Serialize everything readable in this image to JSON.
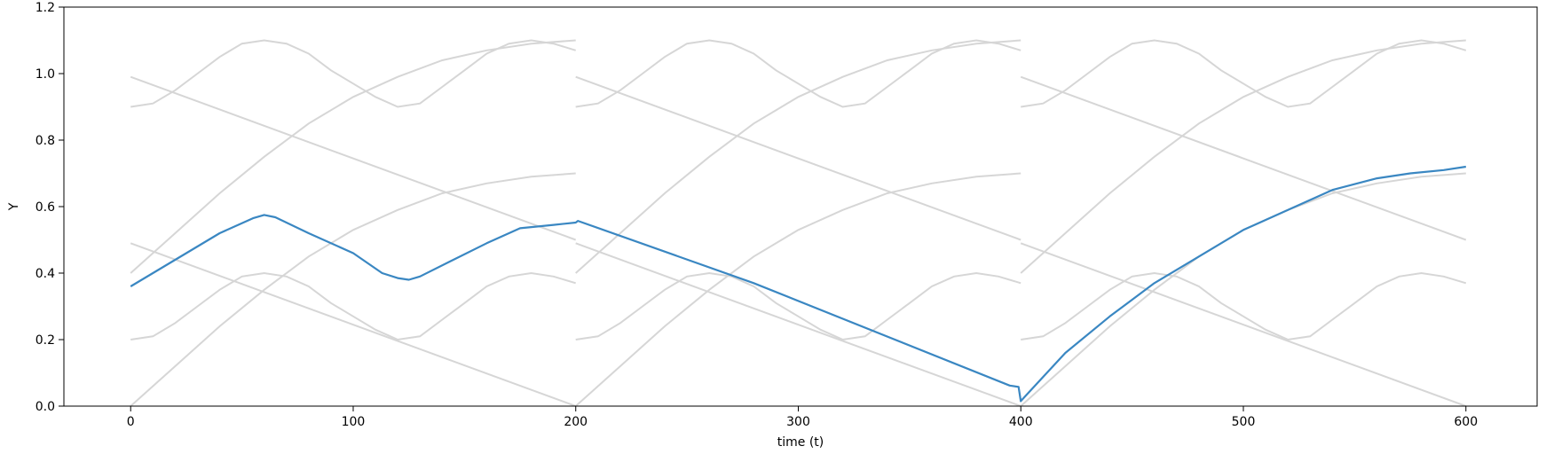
{
  "chart_data": {
    "type": "line",
    "xlabel": "time (t)",
    "ylabel": "Y",
    "xlim": [
      -30,
      632
    ],
    "ylim": [
      0.0,
      1.2
    ],
    "xticks": [
      0,
      100,
      200,
      300,
      400,
      500,
      600
    ],
    "yticks": [
      0.0,
      0.2,
      0.4,
      0.6,
      0.8,
      1.0,
      1.2
    ],
    "grid": false,
    "colors": {
      "highlight": "#3a87c2",
      "background": "#d6d6d6"
    },
    "background_series": [
      {
        "x": [
          0,
          10,
          20,
          30,
          40,
          50,
          60,
          70,
          80,
          90,
          100,
          110,
          120,
          130,
          140,
          150,
          160,
          170,
          180,
          190,
          200
        ],
        "values": [
          0.9,
          0.91,
          0.95,
          1.0,
          1.05,
          1.09,
          1.1,
          1.09,
          1.06,
          1.01,
          0.97,
          0.93,
          0.9,
          0.91,
          0.96,
          1.01,
          1.06,
          1.09,
          1.1,
          1.09,
          1.07
        ]
      },
      {
        "x": [
          0,
          10,
          20,
          30,
          40,
          50,
          60,
          70,
          80,
          90,
          100,
          110,
          120,
          130,
          140,
          150,
          160,
          170,
          180,
          190,
          200
        ],
        "values": [
          0.2,
          0.21,
          0.25,
          0.3,
          0.35,
          0.39,
          0.4,
          0.39,
          0.36,
          0.31,
          0.27,
          0.23,
          0.2,
          0.21,
          0.26,
          0.31,
          0.36,
          0.39,
          0.4,
          0.39,
          0.37
        ]
      },
      {
        "x": [
          0,
          20,
          40,
          60,
          80,
          100,
          120,
          140,
          160,
          180,
          200
        ],
        "values": [
          0.4,
          0.52,
          0.64,
          0.75,
          0.85,
          0.93,
          0.99,
          1.04,
          1.07,
          1.09,
          1.1
        ]
      },
      {
        "x": [
          0,
          20,
          40,
          60,
          80,
          100,
          120,
          140,
          160,
          180,
          200
        ],
        "values": [
          0.0,
          0.12,
          0.24,
          0.35,
          0.45,
          0.53,
          0.59,
          0.64,
          0.67,
          0.69,
          0.7
        ]
      },
      {
        "x": [
          0,
          200
        ],
        "values": [
          0.99,
          0.5
        ]
      },
      {
        "x": [
          0,
          200
        ],
        "values": [
          0.49,
          0.0
        ]
      }
    ],
    "segment_offsets": [
      0,
      200,
      400
    ],
    "series": [
      {
        "x": [
          0,
          25,
          40,
          55,
          60,
          65,
          80,
          100,
          113,
          120,
          125,
          130,
          145,
          160,
          170,
          175,
          190,
          200,
          201,
          280,
          395,
          399,
          400,
          402,
          420,
          440,
          460,
          480,
          500,
          520,
          540,
          560,
          575,
          590,
          600
        ],
        "values": [
          0.36,
          0.46,
          0.52,
          0.565,
          0.575,
          0.568,
          0.52,
          0.46,
          0.4,
          0.385,
          0.38,
          0.39,
          0.44,
          0.49,
          0.52,
          0.535,
          0.545,
          0.552,
          0.557,
          0.37,
          0.062,
          0.058,
          0.015,
          0.03,
          0.16,
          0.27,
          0.37,
          0.45,
          0.53,
          0.59,
          0.65,
          0.685,
          0.7,
          0.71,
          0.72
        ]
      }
    ]
  }
}
